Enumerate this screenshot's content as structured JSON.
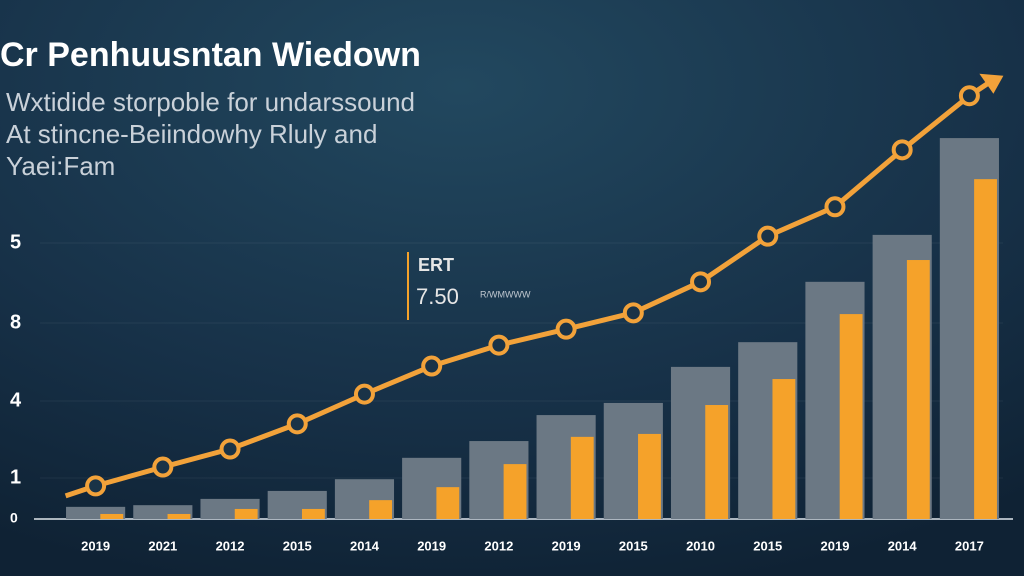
{
  "chart_data": {
    "type": "bar-line",
    "title": "Cr Penhuusntan Wiedown",
    "subtitle": [
      "Wxtidide storpoble for undarssound",
      "At stincne-Beiindowhy Rluly and",
      "Yaei:Fam"
    ],
    "y_axis_labels": [
      "5",
      "8",
      "4",
      "1",
      "0"
    ],
    "annotation": {
      "title": "ERT",
      "value": "7.50",
      "note": "R/WMWWW"
    },
    "categories": [
      "2019",
      "2021",
      "2012",
      "2015",
      "2014",
      "2019",
      "2012",
      "2019",
      "2015",
      "2010",
      "2015",
      "2019",
      "2014",
      "2017"
    ],
    "ylim": [
      0,
      10.5
    ],
    "series": [
      {
        "kind": "bar",
        "color": "#6b7884",
        "values": [
          0.29,
          0.33,
          0.48,
          0.67,
          0.95,
          1.46,
          1.86,
          2.48,
          2.77,
          3.63,
          4.22,
          5.66,
          6.78,
          9.09
        ]
      },
      {
        "kind": "bar",
        "color": "#f5a22a",
        "values": [
          0.12,
          0.12,
          0.24,
          0.24,
          0.45,
          0.76,
          1.31,
          1.96,
          2.03,
          2.72,
          3.34,
          4.89,
          6.18,
          8.11
        ]
      },
      {
        "kind": "line",
        "color": "#f2a23a",
        "values": [
          0.79,
          1.24,
          1.67,
          2.27,
          2.98,
          3.65,
          4.15,
          4.53,
          4.92,
          5.66,
          6.75,
          7.45,
          8.81,
          10.1
        ]
      }
    ]
  }
}
